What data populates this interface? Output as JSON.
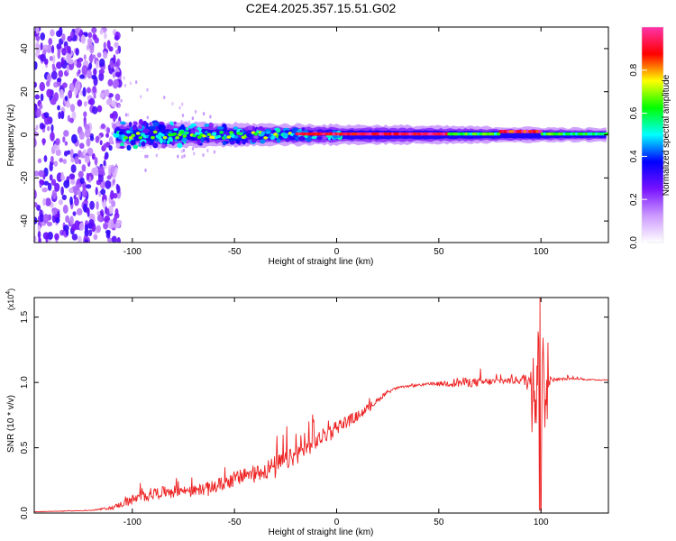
{
  "title": "C2E4.2025.357.15.51.G02",
  "colors": {
    "snr_line": "#ee2222",
    "frame": "#000000"
  },
  "chart_data": [
    {
      "type": "heatmap",
      "xlabel": "Height of straight line (km)",
      "ylabel": "Frequency (Hz)",
      "xlim": [
        -148,
        133
      ],
      "ylim": [
        -50,
        50
      ],
      "x_ticks": [
        -100,
        -50,
        0,
        50,
        100
      ],
      "y_ticks": [
        -40,
        -20,
        0,
        20,
        40
      ],
      "colorbar": {
        "label": "Normalized spectral amplitude",
        "range": [
          0,
          1
        ],
        "ticks": [
          0.0,
          0.2,
          0.4,
          0.6,
          0.8
        ],
        "colormap": [
          "#ffffff",
          "#cc99ff",
          "#7711ff",
          "#0000ff",
          "#00ffff",
          "#00ff00",
          "#ffff00",
          "#ff0000",
          "#ff33aa"
        ]
      },
      "description_values": {
        "noise_region_x": [
          -148,
          -110
        ],
        "signal_band_center_hz": 0,
        "signal_band_halfwidth_hz": [
          6,
          3
        ]
      }
    },
    {
      "type": "line",
      "xlabel": "Height of straight line (km)",
      "ylabel": "SNR (10 * v/v)",
      "y_multiplier": "(x10",
      "y_multiplier_exp": "4",
      "xlim": [
        -148,
        133
      ],
      "ylim": [
        0,
        1.65
      ],
      "x_ticks": [
        -100,
        -50,
        0,
        50,
        100
      ],
      "y_ticks": [
        0.0,
        0.5,
        1.0,
        1.5
      ],
      "series": [
        {
          "envelope_x": [
            -148,
            -120,
            -110,
            -100,
            -90,
            -80,
            -70,
            -60,
            -50,
            -40,
            -30,
            -20,
            -10,
            0,
            10,
            20,
            25,
            30,
            40,
            50,
            60,
            70,
            80,
            90,
            96,
            100,
            105,
            115,
            125,
            133
          ],
          "envelope_y": [
            0.01,
            0.02,
            0.04,
            0.1,
            0.15,
            0.17,
            0.17,
            0.2,
            0.26,
            0.3,
            0.36,
            0.44,
            0.55,
            0.66,
            0.74,
            0.86,
            0.93,
            0.96,
            0.98,
            0.99,
            1.0,
            1.0,
            1.01,
            1.02,
            1.0,
            1.02,
            1.02,
            1.03,
            1.02,
            1.02
          ],
          "noise_amp_y": [
            0.005,
            0.008,
            0.03,
            0.1,
            0.12,
            0.1,
            0.1,
            0.13,
            0.15,
            0.17,
            0.2,
            0.18,
            0.16,
            0.14,
            0.1,
            0.05,
            0.03,
            0.02,
            0.02,
            0.04,
            0.1,
            0.08,
            0.06,
            0.08,
            0.25,
            0.5,
            0.04,
            0.015,
            0.012,
            0.012
          ],
          "spike": {
            "x": 99.5,
            "y_max": 1.65,
            "y_min": 0.0
          }
        }
      ]
    }
  ]
}
